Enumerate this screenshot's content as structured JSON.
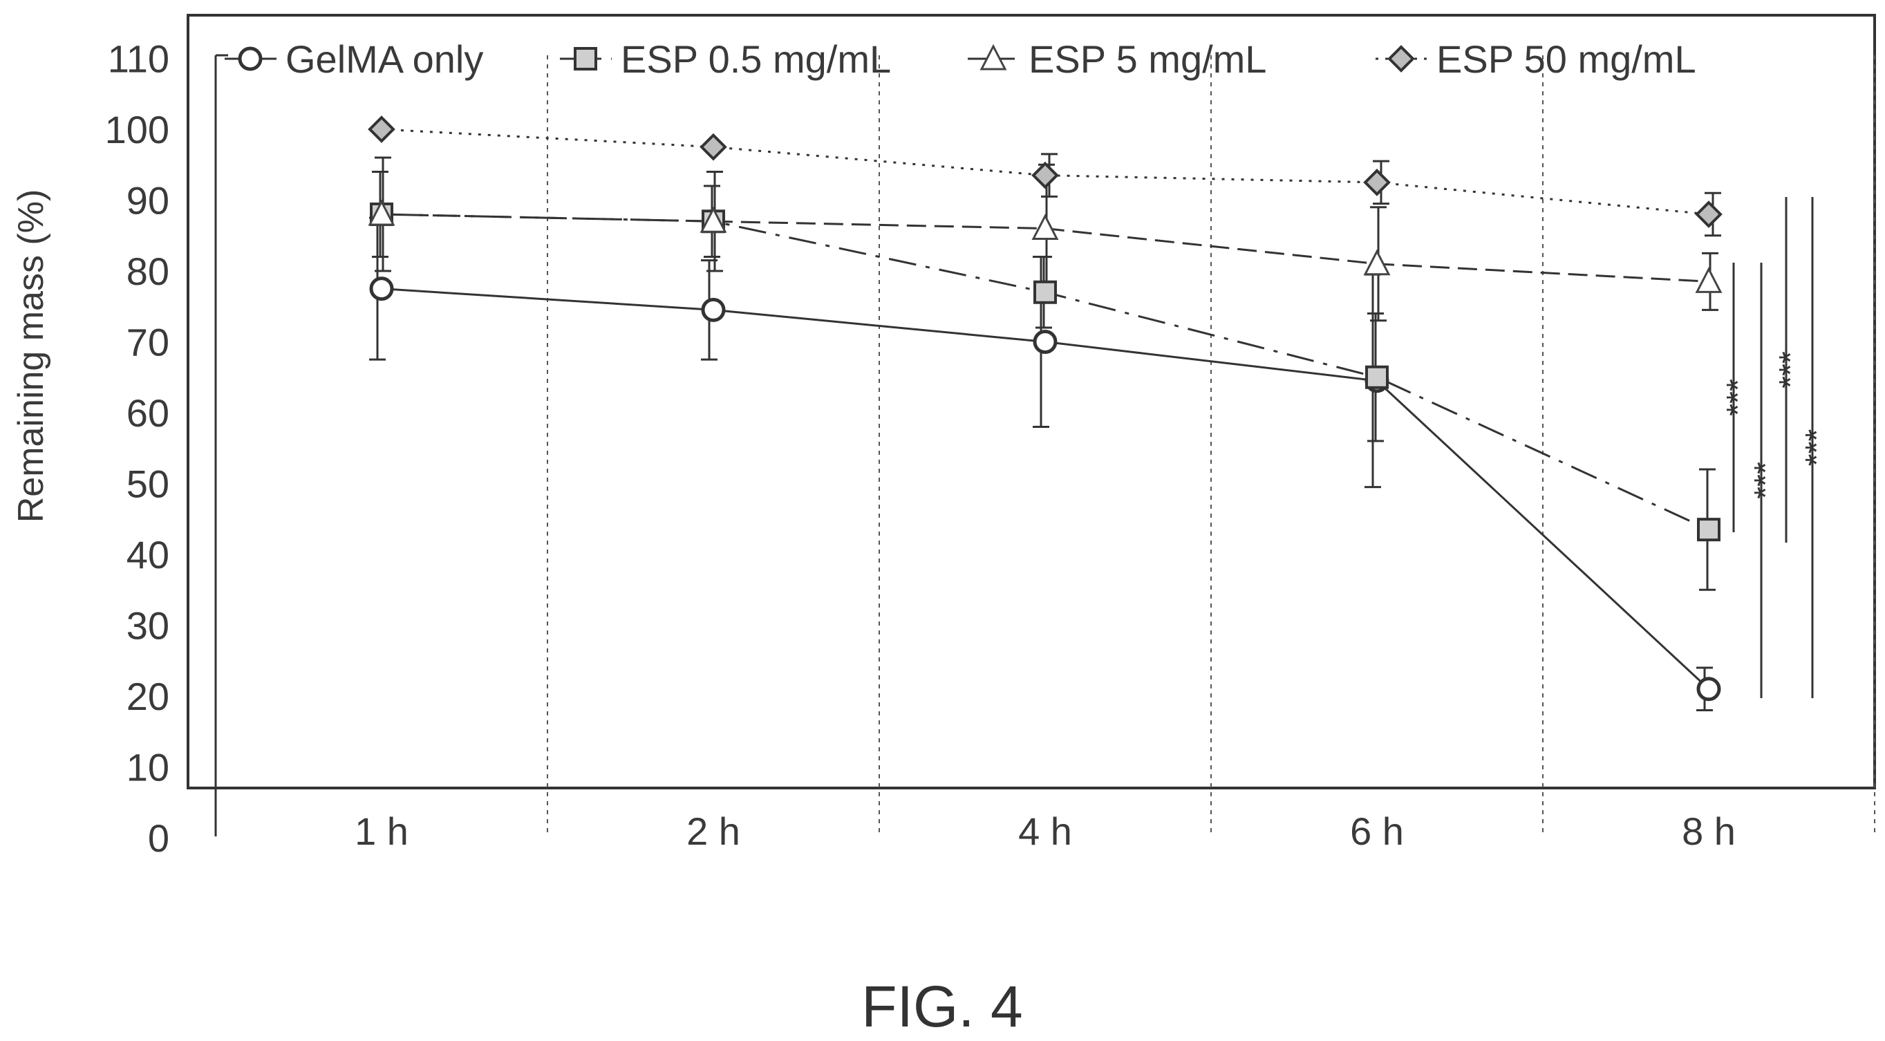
{
  "chart_data": {
    "type": "line",
    "title": "",
    "xlabel": "",
    "ylabel": "Remaining mass (%)",
    "categories": [
      "1 h",
      "2 h",
      "4 h",
      "6 h",
      "8 h"
    ],
    "ylim": [
      0,
      110
    ],
    "yticks": [
      "110",
      "100",
      "90",
      "80",
      "70",
      "60",
      "50",
      "40",
      "30",
      "20",
      "10",
      "0"
    ],
    "legend_position": "top",
    "grid": "vertical dotted lines between categories",
    "series": [
      {
        "name": "GelMA only",
        "marker": "circle",
        "line_style": "solid",
        "values": [
          77.5,
          74.5,
          70,
          64.5,
          21
        ],
        "error": [
          10,
          7,
          12,
          15,
          3
        ]
      },
      {
        "name": "ESP 0.5 mg/mL",
        "marker": "square",
        "line_style": "dashdot",
        "values": [
          88,
          87,
          77,
          65,
          43.5
        ],
        "error": [
          6,
          5,
          5,
          9,
          8.5
        ]
      },
      {
        "name": "ESP 5 mg/mL",
        "marker": "triangle",
        "line_style": "dashed",
        "values": [
          88,
          87,
          86,
          81,
          78.5
        ],
        "error": [
          8,
          7,
          9,
          8,
          4
        ]
      },
      {
        "name": "ESP 50 mg/mL",
        "marker": "diamond",
        "line_style": "dotted",
        "values": [
          100,
          97.5,
          93.5,
          92.5,
          88
        ],
        "error": [
          0,
          0,
          3,
          3,
          3
        ]
      }
    ],
    "annotations": [
      "***",
      "***",
      "***",
      "***"
    ]
  },
  "caption": "FIG. 4"
}
